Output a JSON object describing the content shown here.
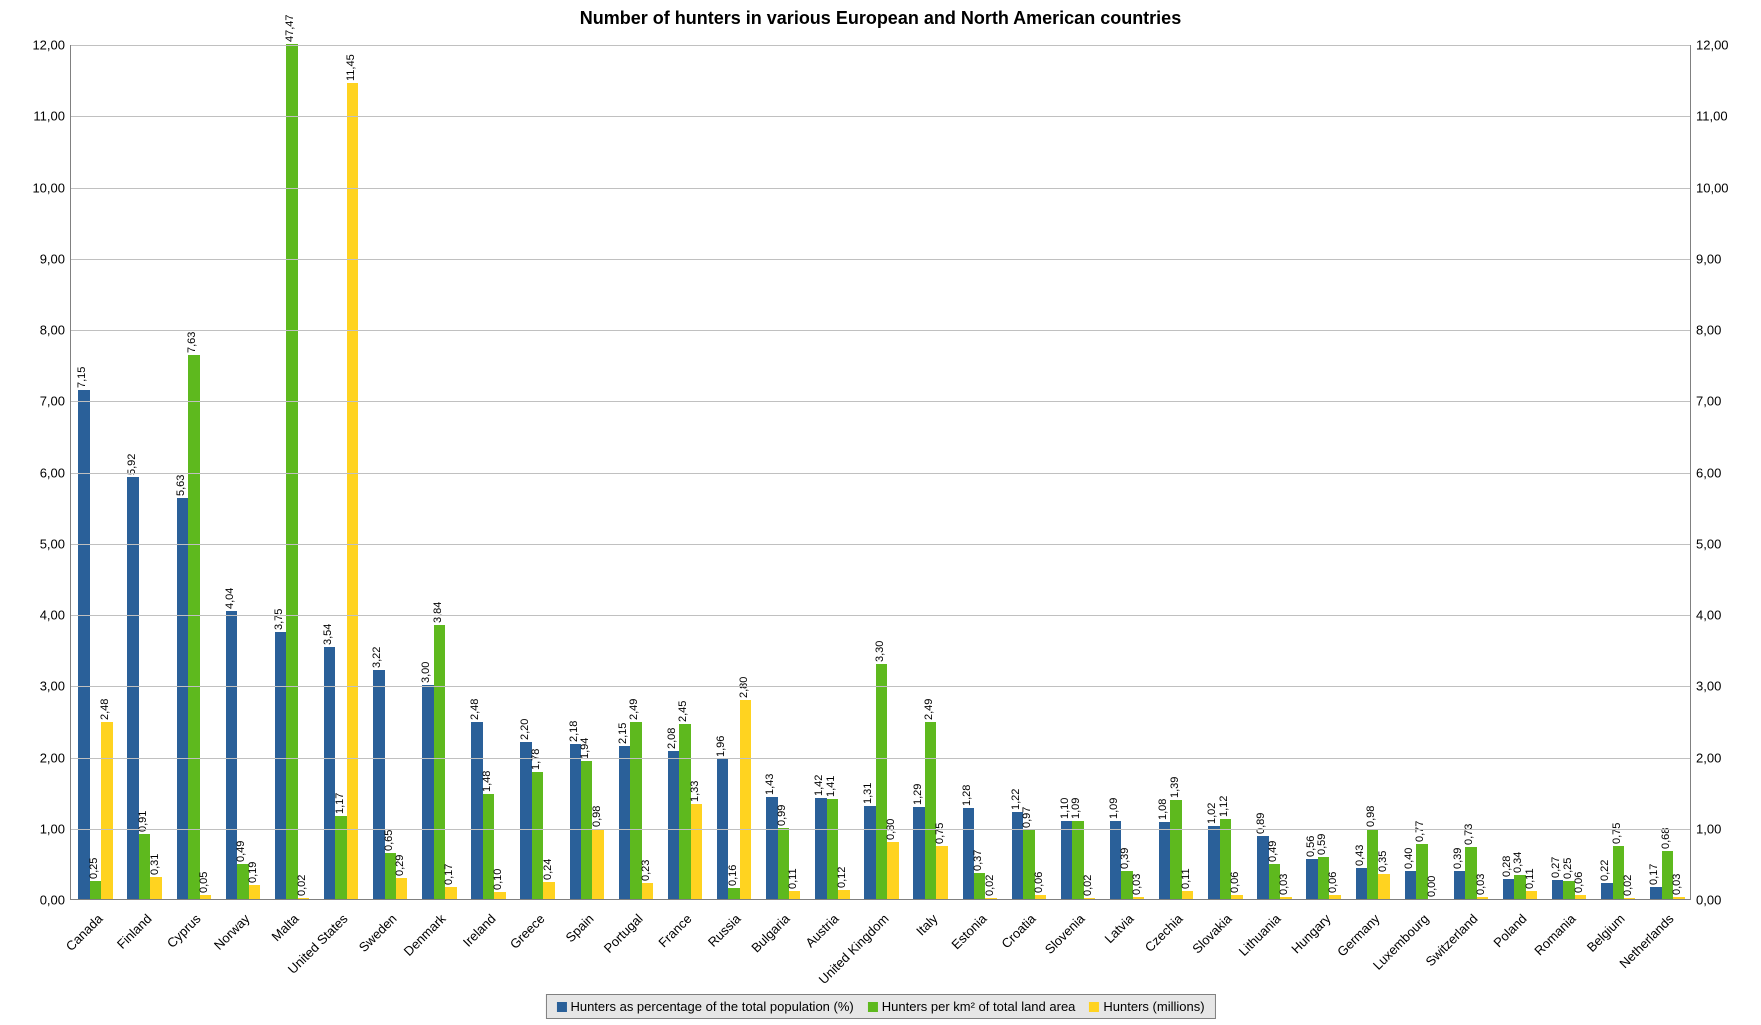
{
  "title": "Number of hunters in various European and North American countries",
  "title_fontsize": 18,
  "background_color": "#ffffff",
  "grid_color": "#c0c0c0",
  "axis_color": "#808080",
  "tick_fontsize": 13,
  "value_label_fontsize": 11,
  "x_label_fontsize": 13,
  "x_label_rotation_deg": -45,
  "value_label_rotation_deg": -90,
  "bar_gap_ratio_within": 0.0,
  "group_padding_ratio": 0.3,
  "legend": {
    "bg": "#e6e6e6",
    "border": "#808080",
    "items": [
      {
        "label": "Hunters as percentage of the total population (%)",
        "color": "#2a6099"
      },
      {
        "label": "Hunters per km² of total land area",
        "color": "#5eb91e"
      },
      {
        "label": "Hunters (millions)",
        "color": "#ffd320"
      }
    ]
  },
  "y_axis": {
    "min": 0,
    "max": 12,
    "tick_step": 1,
    "tick_format_decimals": 2,
    "decimal_sep": ","
  },
  "series": [
    {
      "key": "pct",
      "name": "Hunters as percentage of the total population (%)",
      "color": "#2a6099"
    },
    {
      "key": "km2",
      "name": "Hunters per km² of total land area",
      "color": "#5eb91e"
    },
    {
      "key": "mill",
      "name": "Hunters (millions)",
      "color": "#ffd320"
    }
  ],
  "decimal_sep": ",",
  "value_label_decimals": 2,
  "countries": [
    {
      "name": "Canada",
      "pct": 7.15,
      "km2": 0.25,
      "mill": 2.48
    },
    {
      "name": "Finland",
      "pct": 5.92,
      "km2": 0.91,
      "mill": 0.31
    },
    {
      "name": "Cyprus",
      "pct": 5.63,
      "km2": 7.63,
      "mill": 0.05
    },
    {
      "name": "Norway",
      "pct": 4.04,
      "km2": 0.49,
      "mill": 0.19
    },
    {
      "name": "Malta",
      "pct": 3.75,
      "km2": 47.47,
      "mill": 0.02
    },
    {
      "name": "United States",
      "pct": 3.54,
      "km2": 1.17,
      "mill": 11.45
    },
    {
      "name": "Sweden",
      "pct": 3.22,
      "km2": 0.65,
      "mill": 0.29
    },
    {
      "name": "Denmark",
      "pct": 3.0,
      "km2": 3.84,
      "mill": 0.17
    },
    {
      "name": "Ireland",
      "pct": 2.48,
      "km2": 1.48,
      "mill": 0.1
    },
    {
      "name": "Greece",
      "pct": 2.2,
      "km2": 1.78,
      "mill": 0.24
    },
    {
      "name": "Spain",
      "pct": 2.18,
      "km2": 1.94,
      "mill": 0.98
    },
    {
      "name": "Portugal",
      "pct": 2.15,
      "km2": 2.49,
      "mill": 0.23
    },
    {
      "name": "France",
      "pct": 2.08,
      "km2": 2.45,
      "mill": 1.33
    },
    {
      "name": "Russia",
      "pct": 1.96,
      "km2": 0.16,
      "mill": 2.8
    },
    {
      "name": "Bulgaria",
      "pct": 1.43,
      "km2": 0.99,
      "mill": 0.11
    },
    {
      "name": "Austria",
      "pct": 1.42,
      "km2": 1.41,
      "mill": 0.12
    },
    {
      "name": "United Kingdom",
      "pct": 1.31,
      "km2": 3.3,
      "mill": 0.8
    },
    {
      "name": "Italy",
      "pct": 1.29,
      "km2": 2.49,
      "mill": 0.75
    },
    {
      "name": "Estonia",
      "pct": 1.28,
      "km2": 0.37,
      "mill": 0.02
    },
    {
      "name": "Croatia",
      "pct": 1.22,
      "km2": 0.97,
      "mill": 0.06
    },
    {
      "name": "Slovenia",
      "pct": 1.1,
      "km2": 1.09,
      "mill": 0.02
    },
    {
      "name": "Latvia",
      "pct": 1.09,
      "km2": 0.39,
      "mill": 0.03
    },
    {
      "name": "Czechia",
      "pct": 1.08,
      "km2": 1.39,
      "mill": 0.11
    },
    {
      "name": "Slovakia",
      "pct": 1.02,
      "km2": 1.12,
      "mill": 0.06
    },
    {
      "name": "Lithuania",
      "pct": 0.89,
      "km2": 0.49,
      "mill": 0.03
    },
    {
      "name": "Hungary",
      "pct": 0.56,
      "km2": 0.59,
      "mill": 0.06
    },
    {
      "name": "Germany",
      "pct": 0.43,
      "km2": 0.98,
      "mill": 0.35
    },
    {
      "name": "Luxembourg",
      "pct": 0.4,
      "km2": 0.77,
      "mill": 0.0
    },
    {
      "name": "Switzerland",
      "pct": 0.39,
      "km2": 0.73,
      "mill": 0.03
    },
    {
      "name": "Poland",
      "pct": 0.28,
      "km2": 0.34,
      "mill": 0.11
    },
    {
      "name": "Romania",
      "pct": 0.27,
      "km2": 0.25,
      "mill": 0.06
    },
    {
      "name": "Belgium",
      "pct": 0.22,
      "km2": 0.75,
      "mill": 0.02
    },
    {
      "name": "Netherlands",
      "pct": 0.17,
      "km2": 0.68,
      "mill": 0.03
    }
  ]
}
